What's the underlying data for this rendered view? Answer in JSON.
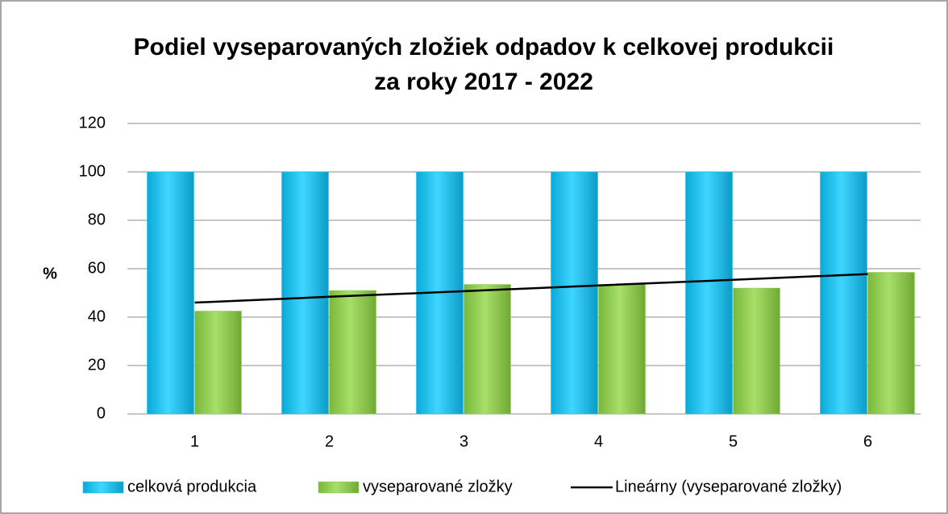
{
  "chart_data": {
    "type": "bar",
    "title": [
      "Podiel vyseparovaných zložiek odpadov k celkovej produkcii",
      "za roky 2017 - 2022"
    ],
    "y_label": "%",
    "categories": [
      "1",
      "2",
      "3",
      "4",
      "5",
      "6"
    ],
    "series": [
      {
        "name": "celková produkcia",
        "type": "bar",
        "color": "#19c3f0",
        "values": [
          100,
          100,
          100,
          100,
          100,
          100
        ]
      },
      {
        "name": "vyseparované zložky",
        "type": "bar",
        "color": "#92d050",
        "values": [
          42.5,
          51,
          53.5,
          53.5,
          52,
          58.5
        ]
      },
      {
        "name": "Lineárny (vyseparované zložky)",
        "type": "line",
        "color": "#000000",
        "values": [
          46,
          48.4,
          50.7,
          53.1,
          55.4,
          57.8
        ]
      }
    ],
    "ylim": [
      0,
      120
    ],
    "yticks": [
      0,
      20,
      40,
      60,
      80,
      100,
      120
    ],
    "grid": true,
    "legend": "bottom"
  }
}
